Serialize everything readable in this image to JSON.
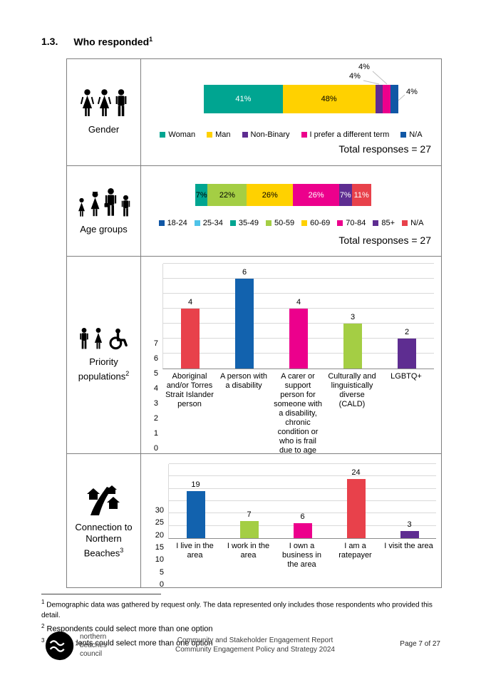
{
  "page": {
    "title_number": "1.3.",
    "title": "Who responded",
    "title_sup": "1"
  },
  "sections": {
    "gender": {
      "label": "Gender",
      "total": "Total responses = 27"
    },
    "age": {
      "label": "Age groups",
      "total": "Total responses = 27"
    },
    "priority": {
      "label": "Priority populations",
      "sup": "2"
    },
    "connection": {
      "label": "Connection to Northern Beaches",
      "sup": "3"
    }
  },
  "chart_data": [
    {
      "id": "gender",
      "type": "stacked_bar_horizontal",
      "title": "Gender",
      "total_note": "Total responses = 27",
      "series": [
        {
          "name": "Woman",
          "value": 41,
          "color": "#00A591",
          "label": "41%",
          "label_color": "#FFFFFF",
          "label_inside": true
        },
        {
          "name": "Man",
          "value": 48,
          "color": "#FFD100",
          "label": "48%",
          "label_color": "#000000",
          "label_inside": true
        },
        {
          "name": "Non-Binary",
          "value": 4,
          "color": "#5E2D91",
          "label": "4%",
          "callout": true
        },
        {
          "name": "I prefer a different term",
          "value": 4,
          "color": "#EC008C",
          "label": "4%",
          "callout": true
        },
        {
          "name": "N/A",
          "value": 4,
          "color": "#1057A5",
          "label": "4%",
          "callout": true
        }
      ],
      "legend": [
        {
          "name": "Woman",
          "color": "#00A591"
        },
        {
          "name": "Man",
          "color": "#FFD100"
        },
        {
          "name": "Non-Binary",
          "color": "#5E2D91"
        },
        {
          "name": "I prefer a different term",
          "color": "#EC008C"
        },
        {
          "name": "N/A",
          "color": "#1057A5"
        }
      ]
    },
    {
      "id": "age",
      "type": "stacked_bar_horizontal",
      "title": "Age groups",
      "total_note": "Total responses = 27",
      "series": [
        {
          "name": "35-49",
          "value": 7,
          "color": "#00A591",
          "label": "7%",
          "label_color": "#000000",
          "label_inside": true
        },
        {
          "name": "50-59",
          "value": 22,
          "color": "#A4CE44",
          "label": "22%",
          "label_color": "#000000",
          "label_inside": true
        },
        {
          "name": "60-69",
          "value": 26,
          "color": "#FFD100",
          "label": "26%",
          "label_color": "#000000",
          "label_inside": true
        },
        {
          "name": "70-84",
          "value": 26,
          "color": "#EC008C",
          "label": "26%",
          "label_color": "#FFFFFF",
          "label_inside": true
        },
        {
          "name": "85+",
          "value": 7,
          "color": "#5E2D91",
          "label": "7%",
          "label_color": "#FFFFFF",
          "label_inside": true
        },
        {
          "name": "N/A",
          "value": 11,
          "color": "#E8414B",
          "label": "11%",
          "label_color": "#FFFFFF",
          "label_inside": true
        }
      ],
      "legend": [
        {
          "name": "18-24",
          "color": "#1057A5"
        },
        {
          "name": "25-34",
          "color": "#4FC3E8"
        },
        {
          "name": "35-49",
          "color": "#00A591"
        },
        {
          "name": "50-59",
          "color": "#A4CE44"
        },
        {
          "name": "60-69",
          "color": "#FFD100"
        },
        {
          "name": "70-84",
          "color": "#EC008C"
        },
        {
          "name": "85+",
          "color": "#5E2D91"
        },
        {
          "name": "N/A",
          "color": "#E8414B"
        }
      ]
    },
    {
      "id": "priority",
      "type": "bar",
      "title": "Priority populations",
      "ymax": 7,
      "ystep": 1,
      "categories": [
        "Aboriginal and/or Torres Strait Islander person",
        "A person with a disability",
        "A carer or support person for someone with a disability, chronic condition or who is frail due to age",
        "Culturally and linguistically diverse (CALD)",
        "LGBTQ+"
      ],
      "values": [
        4,
        6,
        4,
        3,
        2
      ],
      "colors": [
        "#E8414B",
        "#1262AE",
        "#EC008C",
        "#A4CE44",
        "#5E2D91"
      ]
    },
    {
      "id": "connection",
      "type": "bar",
      "title": "Connection to Northern Beaches",
      "ymax": 30,
      "ystep": 5,
      "categories": [
        "I live in the area",
        "I work in the area",
        "I own a business in the area",
        "I am a ratepayer",
        "I visit the area"
      ],
      "values": [
        19,
        7,
        6,
        24,
        3
      ],
      "colors": [
        "#1262AE",
        "#A4CE44",
        "#EC008C",
        "#E8414B",
        "#5E2D91"
      ]
    }
  ],
  "footnotes": [
    {
      "sup": "1",
      "text": "Demographic data was gathered by request only. The data represented only includes those respondents who provided this detail."
    },
    {
      "sup": "2",
      "text": "Respondents could select more than one option"
    },
    {
      "sup": "3",
      "text": "Respondents could select more than one option"
    }
  ],
  "footer": {
    "org": [
      "northern",
      "beaches",
      "council"
    ],
    "center_line1": "Community and Stakeholder Engagement Report",
    "center_line2": "Community Engagement Policy and Strategy 2024",
    "page_number": "Page 7 of 27"
  }
}
